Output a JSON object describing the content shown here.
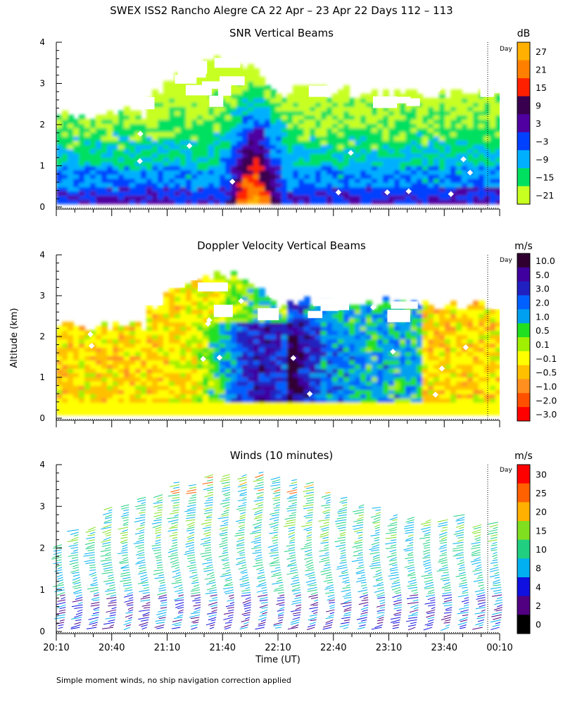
{
  "title": "SWEX ISS2 Rancho Alegre CA  22 Apr – 23 Apr 22 Days 112 – 113",
  "footnote": "Simple moment winds, no ship navigation correction applied",
  "yaxis_title": "Altitude (km)",
  "xaxis_title": "Time (UT)",
  "day_label": "Day",
  "chart_data": [
    {
      "type": "heatmap",
      "title": "SNR Vertical Beams",
      "colorbar_unit": "dB",
      "colorbar_levels": [
        "27",
        "21",
        "15",
        "9",
        "3",
        "−3",
        "−9",
        "−15",
        "−21"
      ],
      "colorbar_colors": [
        "#ffb000",
        "#ff8000",
        "#ff2000",
        "#3a0050",
        "#5000a0",
        "#0040ff",
        "#00b0ff",
        "#00e060",
        "#c8ff20"
      ],
      "ylim": [
        0,
        4
      ],
      "yticks": [
        "0",
        "1",
        "2",
        "3",
        "4"
      ],
      "xlim": [
        "20:10",
        "00:10"
      ]
    },
    {
      "type": "heatmap",
      "title": "Doppler Velocity Vertical Beams",
      "colorbar_unit": "m/s",
      "colorbar_levels": [
        "10.0",
        "5.0",
        "3.0",
        "2.0",
        "1.0",
        "0.5",
        "0.1",
        "−0.1",
        "−0.5",
        "−1.0",
        "−2.0",
        "−3.0"
      ],
      "colorbar_colors": [
        "#300030",
        "#4000a0",
        "#2020c0",
        "#0060ff",
        "#00a0f0",
        "#20e020",
        "#a0f000",
        "#ffff00",
        "#ffc000",
        "#ff9020",
        "#ff5000",
        "#ff0000"
      ],
      "ylim": [
        0,
        4
      ],
      "yticks": [
        "0",
        "1",
        "2",
        "3",
        "4"
      ],
      "xlim": [
        "20:10",
        "00:10"
      ]
    },
    {
      "type": "scatter",
      "title": "Winds (10 minutes)",
      "colorbar_unit": "m/s",
      "colorbar_levels": [
        "30",
        "25",
        "20",
        "15",
        "10",
        "8",
        "4",
        "2",
        "0"
      ],
      "colorbar_colors": [
        "#ff0000",
        "#ff6000",
        "#ffb000",
        "#80e020",
        "#20d080",
        "#00b0f0",
        "#1010e0",
        "#500080",
        "#000000"
      ],
      "ylim": [
        0,
        4
      ],
      "yticks": [
        "0",
        "1",
        "2",
        "3",
        "4"
      ],
      "xticks": [
        "20:10",
        "20:40",
        "21:10",
        "21:40",
        "22:10",
        "22:40",
        "23:10",
        "23:40",
        "00:10"
      ],
      "xlim": [
        "20:10",
        "00:10"
      ]
    }
  ]
}
